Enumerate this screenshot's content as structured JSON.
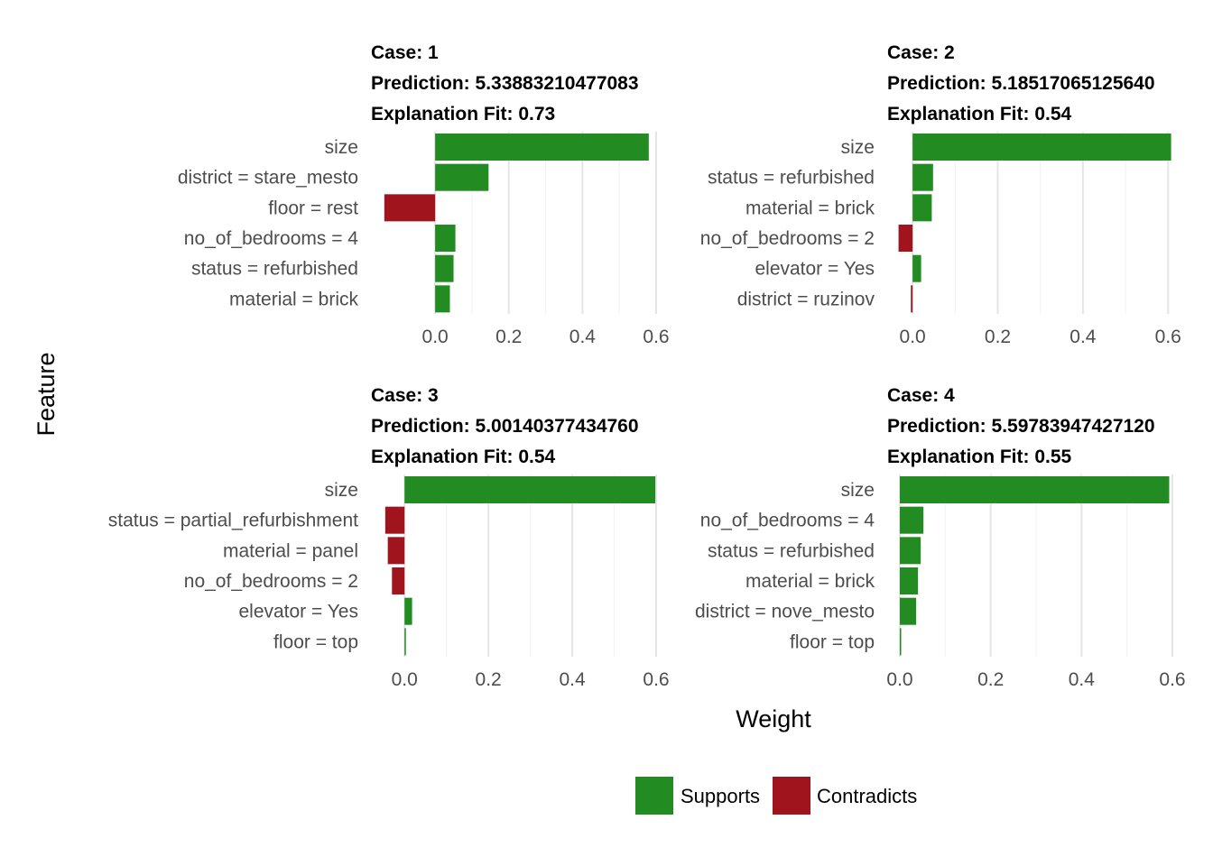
{
  "chart_data": {
    "type": "bar",
    "orientation": "horizontal",
    "xlabel": "Weight",
    "ylabel": "Feature",
    "x_ticks": [
      "0.0",
      "0.2",
      "0.4",
      "0.6"
    ],
    "legend": {
      "position": "bottom",
      "entries": [
        {
          "label": "Supports",
          "color": "#228B22"
        },
        {
          "label": "Contradicts",
          "color": "#A0141E"
        }
      ]
    },
    "panels": [
      {
        "strip": [
          "Case: 1",
          "Prediction: 5.33883210477083",
          "Explanation Fit: 0.73"
        ],
        "xlim": [
          -0.14,
          0.6
        ],
        "features": [
          "size",
          "district = stare_mesto",
          "floor = rest",
          "no_of_bedrooms = 4",
          "status = refurbished",
          "material = brick"
        ],
        "values": [
          0.58,
          0.145,
          -0.138,
          0.055,
          0.05,
          0.04
        ]
      },
      {
        "strip": [
          "Case: 2",
          "Prediction: 5.18517065125640",
          "Explanation Fit: 0.54"
        ],
        "xlim": [
          -0.03,
          0.61
        ],
        "features": [
          "size",
          "status = refurbished",
          "material = brick",
          "no_of_bedrooms = 2",
          "elevator = Yes",
          "district = ruzinov"
        ],
        "values": [
          0.607,
          0.048,
          0.045,
          -0.033,
          0.02,
          -0.004
        ]
      },
      {
        "strip": [
          "Case: 3",
          "Prediction: 5.00140377434760",
          "Explanation Fit: 0.54"
        ],
        "xlim": [
          -0.05,
          0.6
        ],
        "features": [
          "size",
          "status = partial_refurbishment",
          "material = panel",
          "no_of_bedrooms = 2",
          "elevator = Yes",
          "floor = top"
        ],
        "values": [
          0.598,
          -0.046,
          -0.04,
          -0.03,
          0.018,
          0.003
        ]
      },
      {
        "strip": [
          "Case: 4",
          "Prediction: 5.59783947427120",
          "Explanation Fit: 0.55"
        ],
        "xlim": [
          0.0,
          0.6
        ],
        "features": [
          "size",
          "no_of_bedrooms = 4",
          "status = refurbished",
          "material = brick",
          "district = nove_mesto",
          "floor = top"
        ],
        "values": [
          0.593,
          0.052,
          0.046,
          0.04,
          0.036,
          0.002
        ]
      }
    ]
  }
}
